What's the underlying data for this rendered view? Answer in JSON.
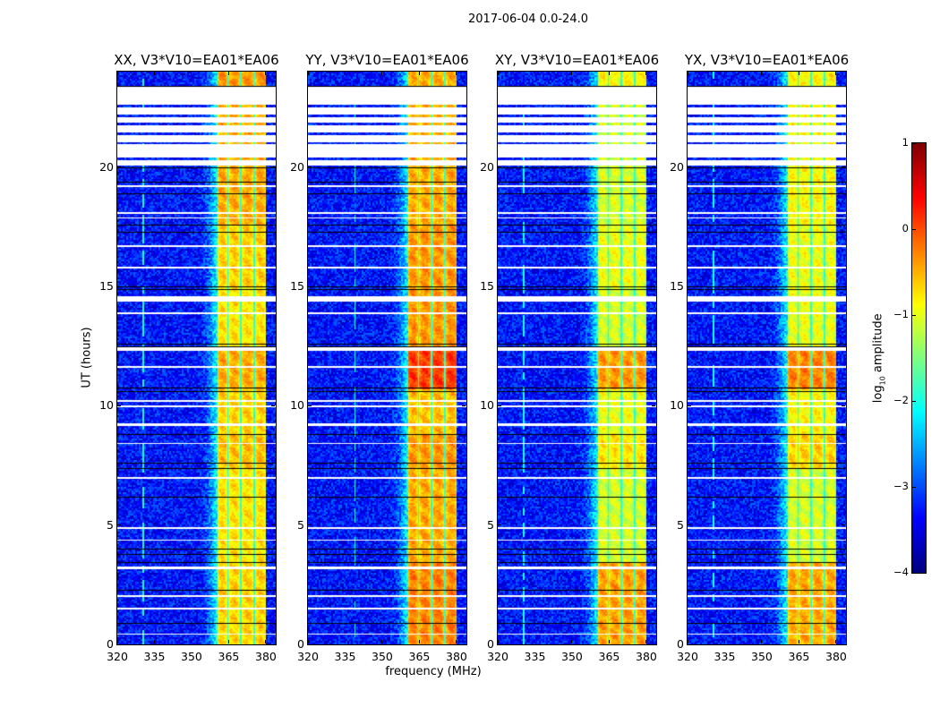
{
  "figure": {
    "suptitle": "2017-06-04 0.0-24.0",
    "xlabel": "frequency (MHz)",
    "ylabel": "UT (hours)",
    "colorbar": {
      "label_prefix": "log",
      "label_sub": "10",
      "label_suffix": " amplitude",
      "colormap": "jet",
      "range": [
        -4,
        1
      ],
      "ticks": [
        "1",
        "0",
        "−1",
        "−2",
        "−3",
        "−4"
      ],
      "tick_values": [
        1,
        0,
        -1,
        -2,
        -3,
        -4
      ]
    }
  },
  "chart_data": {
    "type": "heatmap",
    "xlim": [
      320,
      384
    ],
    "ylim": [
      0,
      24
    ],
    "xticks": [
      320,
      335,
      350,
      365,
      380
    ],
    "xtick_labels": [
      "320",
      "335",
      "350",
      "365",
      "380"
    ],
    "yticks": [
      0,
      5,
      10,
      15,
      20
    ],
    "ytick_labels": [
      "0",
      "5",
      "10",
      "15",
      "20"
    ],
    "background_log_amp": -3.3,
    "band_channels_mhz": [
      [
        360.5,
        364.5
      ],
      [
        365.0,
        369.6
      ],
      [
        370.1,
        375.1
      ],
      [
        375.6,
        380.2
      ]
    ],
    "time_segments_hours": [
      [
        0,
        3.4
      ],
      [
        3.4,
        7.4
      ],
      [
        7.4,
        8.8
      ],
      [
        8.8,
        10.7
      ],
      [
        10.7,
        12.5
      ],
      [
        12.5,
        15.0
      ],
      [
        15.0,
        17.6
      ],
      [
        17.6,
        20.0
      ],
      [
        23.4,
        24.0
      ]
    ],
    "flagged_hours": [
      [
        20.05,
        20.3
      ],
      [
        20.4,
        20.95
      ],
      [
        21.05,
        21.35
      ],
      [
        21.45,
        21.75
      ],
      [
        21.85,
        22.1
      ],
      [
        22.2,
        22.5
      ],
      [
        22.6,
        23.35
      ],
      [
        19.15,
        19.22
      ],
      [
        18.05,
        18.1
      ],
      [
        17.85,
        17.9
      ],
      [
        16.65,
        16.72
      ],
      [
        15.75,
        15.82
      ],
      [
        14.35,
        14.6
      ],
      [
        13.85,
        13.9
      ],
      [
        12.3,
        12.45
      ],
      [
        11.6,
        11.67
      ],
      [
        10.15,
        10.22
      ],
      [
        9.95,
        10.0
      ],
      [
        9.15,
        9.25
      ],
      [
        8.4,
        8.45
      ],
      [
        6.95,
        7.0
      ],
      [
        4.85,
        4.9
      ],
      [
        4.35,
        4.4
      ],
      [
        3.15,
        3.25
      ],
      [
        2.0,
        2.05
      ],
      [
        1.45,
        1.52
      ],
      [
        0.4,
        0.46
      ]
    ],
    "flag_edge_hours": [
      23.4,
      20.0,
      19.4,
      18.9,
      17.6,
      17.3,
      15.0,
      14.9,
      12.6,
      12.5,
      10.75,
      10.6,
      8.8,
      7.6,
      7.4,
      6.2,
      4.0,
      3.8,
      3.45,
      2.3,
      0.9
    ],
    "series": [
      {
        "name": "XX",
        "title": "XX, V3*V10=EA01*EA06",
        "band_log_amp": [
          -0.6,
          -0.7,
          -0.5,
          -0.6,
          -0.4,
          -0.7,
          -0.6,
          -0.4,
          -0.3
        ],
        "rfi_freq_mhz": [
          330.5
        ]
      },
      {
        "name": "YY",
        "title": "YY, V3*V10=EA01*EA06",
        "band_log_amp": [
          -0.2,
          -0.4,
          -0.3,
          -0.5,
          0.15,
          -0.3,
          -0.3,
          -0.4,
          -0.4
        ],
        "rfi_freq_mhz": [
          339.0
        ]
      },
      {
        "name": "XY",
        "title": "XY, V3*V10=EA01*EA06",
        "band_log_amp": [
          -0.35,
          -1.0,
          -0.7,
          -0.9,
          -0.3,
          -1.0,
          -0.9,
          -1.0,
          -0.8
        ],
        "rfi_freq_mhz": [
          330.5
        ]
      },
      {
        "name": "YX",
        "title": "YX, V3*V10=EA01*EA06",
        "band_log_amp": [
          -0.4,
          -1.0,
          -0.6,
          -0.8,
          -0.2,
          -0.9,
          -0.9,
          -0.8,
          -0.8
        ],
        "rfi_freq_mhz": [
          330.5
        ]
      }
    ]
  }
}
